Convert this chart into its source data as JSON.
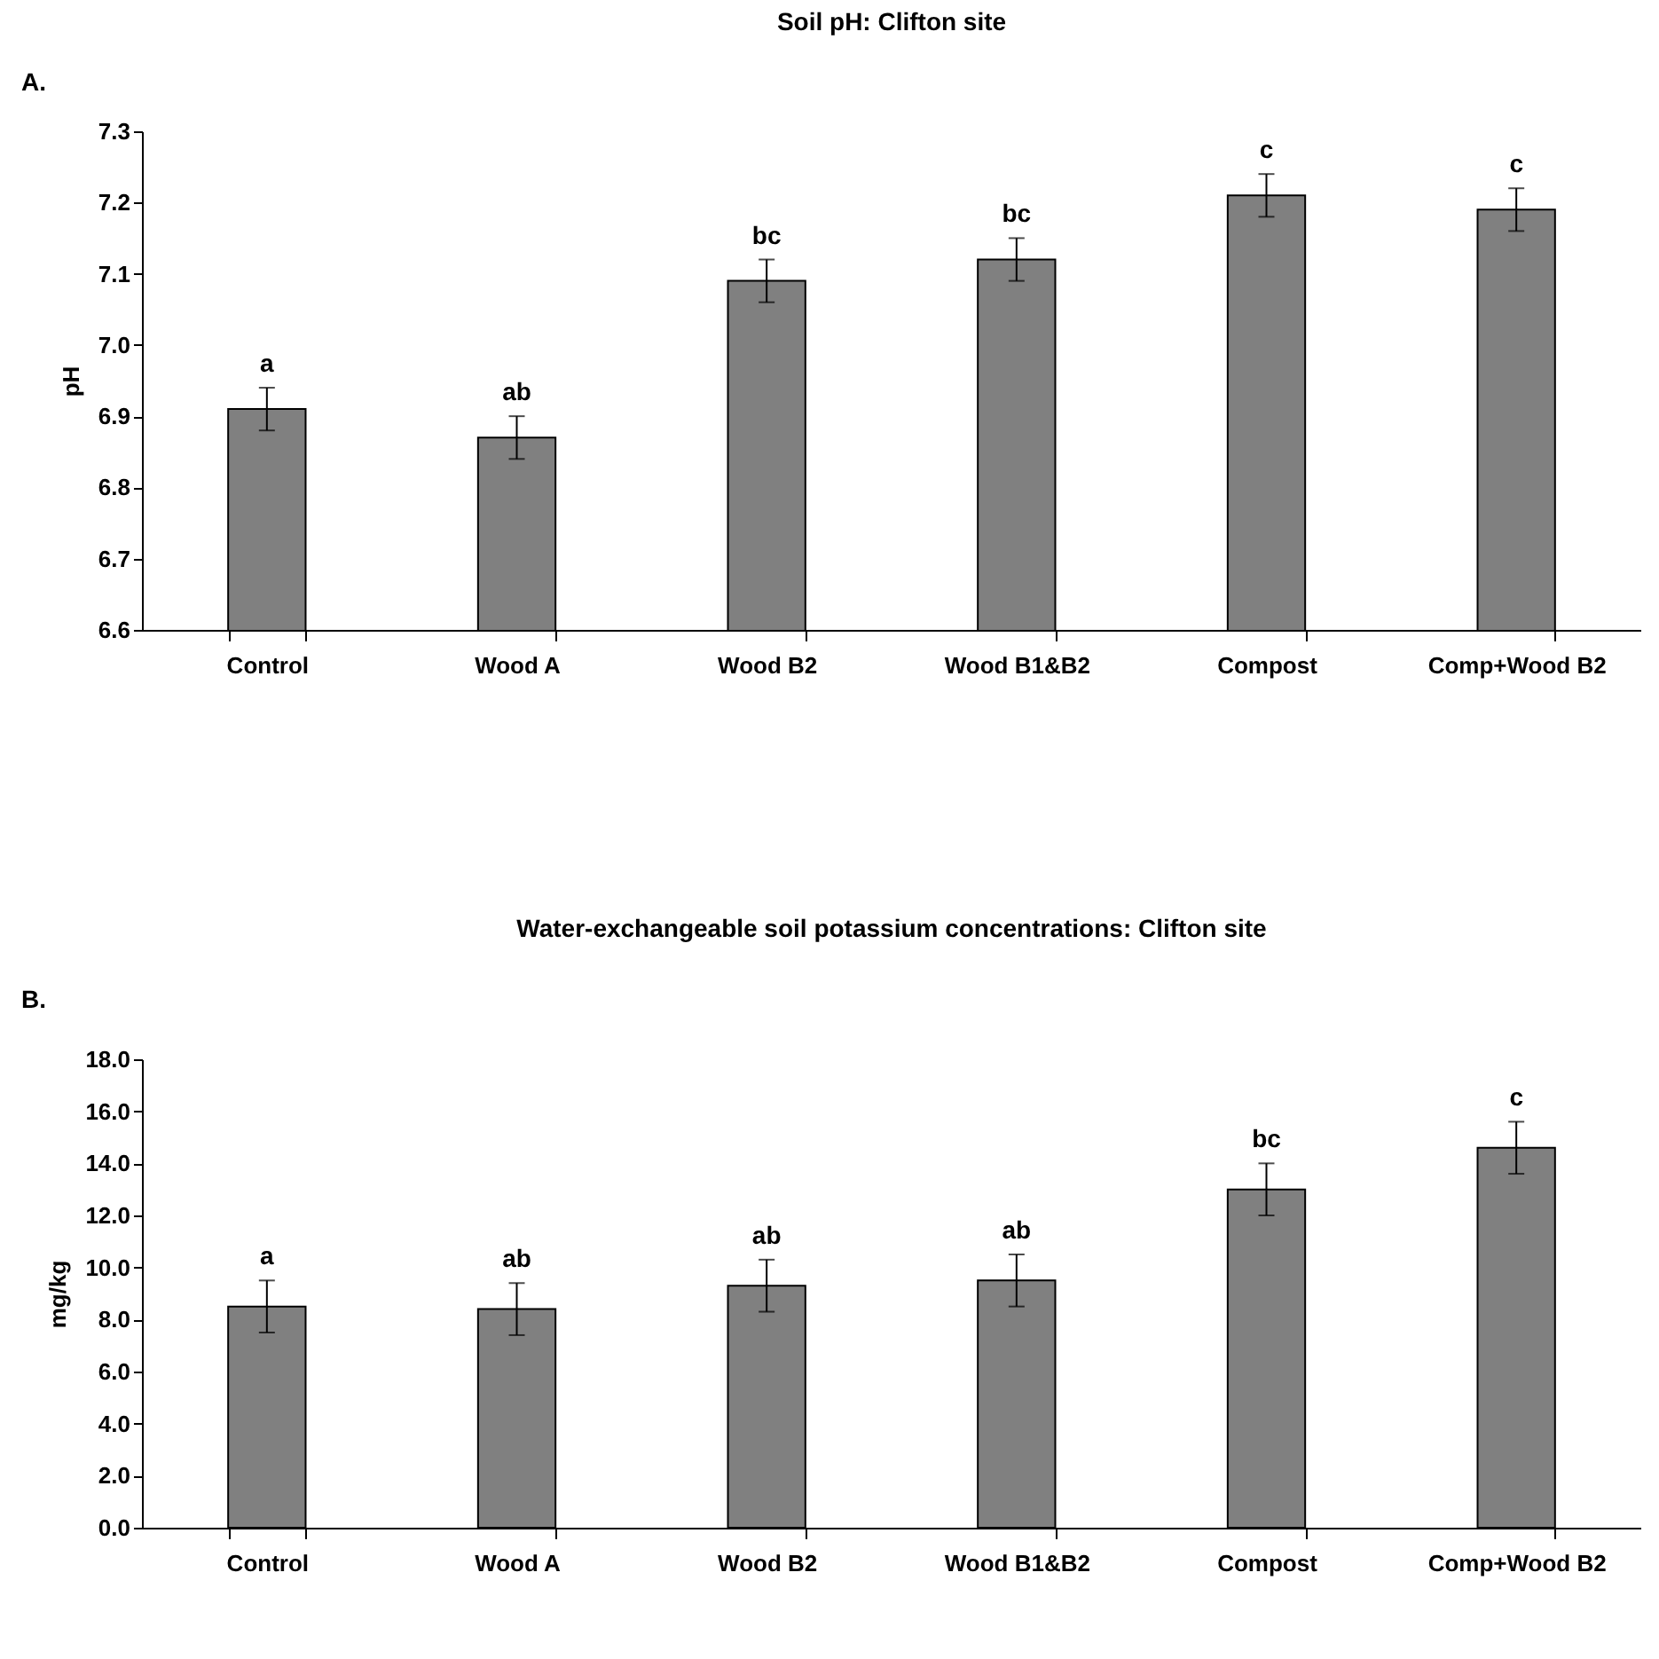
{
  "chart_data": [
    {
      "type": "bar",
      "title": "Soil pH: Clifton site",
      "ylabel": "pH",
      "categories": [
        "Control",
        "Wood A",
        "Wood B2",
        "Wood B1&B2",
        "Compost",
        "Comp+Wood B2"
      ],
      "series": [
        {
          "color": "#808080",
          "values": [
            6.91,
            6.87,
            7.09,
            7.12,
            7.21,
            7.19
          ],
          "errors": [
            0.03,
            0.03,
            0.03,
            0.03,
            0.03,
            0.03
          ]
        }
      ],
      "ylim": [
        6.6,
        7.3
      ],
      "yticks": [
        {
          "value": 6.6,
          "label": "6.6"
        },
        {
          "value": 6.7,
          "label": "6.7"
        },
        {
          "value": 6.8,
          "label": "6.8"
        },
        {
          "value": 6.9,
          "label": "6.9"
        },
        {
          "value": 7.0,
          "label": "7.0"
        },
        {
          "value": 7.1,
          "label": "7.1"
        },
        {
          "value": 7.2,
          "label": "7.2"
        },
        {
          "value": 7.3,
          "label": "7.3"
        }
      ],
      "grid": false,
      "annotations": [
        "A.",
        {
          "text": "a",
          "x": "Control",
          "y": 6.94
        },
        {
          "text": "ab",
          "x": "Wood A",
          "y": 6.9
        },
        {
          "text": "bc",
          "x": "Wood B2",
          "y": 7.12
        },
        {
          "text": "bc",
          "x": "Wood B1&B2",
          "y": 7.15
        },
        {
          "text": "c",
          "x": "Compost",
          "y": 7.24
        },
        {
          "text": "c",
          "x": "Comp+Wood B2",
          "y": 7.22
        }
      ]
    },
    {
      "type": "bar",
      "title": "Water-exchangeable soil potassium concentrations: Clifton site",
      "ylabel": "mg/kg",
      "categories": [
        "Control",
        "Wood A",
        "Wood B2",
        "Wood B1&B2",
        "Compost",
        "Comp+Wood B2"
      ],
      "series": [
        {
          "color": "#808080",
          "values": [
            8.5,
            8.4,
            9.3,
            9.5,
            13.0,
            14.6
          ],
          "errors": [
            1.0,
            1.0,
            1.0,
            1.0,
            1.0,
            1.0
          ]
        }
      ],
      "ylim": [
        0,
        18
      ],
      "yticks": [
        {
          "value": 0,
          "label": "0.0"
        },
        {
          "value": 2,
          "label": "2.0"
        },
        {
          "value": 4,
          "label": "4.0"
        },
        {
          "value": 6,
          "label": "6.0"
        },
        {
          "value": 8,
          "label": "8.0"
        },
        {
          "value": 10,
          "label": "10.0"
        },
        {
          "value": 12,
          "label": "12.0"
        },
        {
          "value": 14,
          "label": "14.0"
        },
        {
          "value": 16,
          "label": "16.0"
        },
        {
          "value": 18,
          "label": "18.0"
        }
      ],
      "grid": false,
      "annotations": [
        "B.",
        {
          "text": "a",
          "x": "Control",
          "y": 9.5
        },
        {
          "text": "ab",
          "x": "Wood A",
          "y": 9.4
        },
        {
          "text": "ab",
          "x": "Wood B2",
          "y": 10.3
        },
        {
          "text": "ab",
          "x": "Wood B1&B2",
          "y": 10.5
        },
        {
          "text": "bc",
          "x": "Compost",
          "y": 14.0
        },
        {
          "text": "c",
          "x": "Comp+Wood B2",
          "y": 15.6
        }
      ]
    }
  ]
}
